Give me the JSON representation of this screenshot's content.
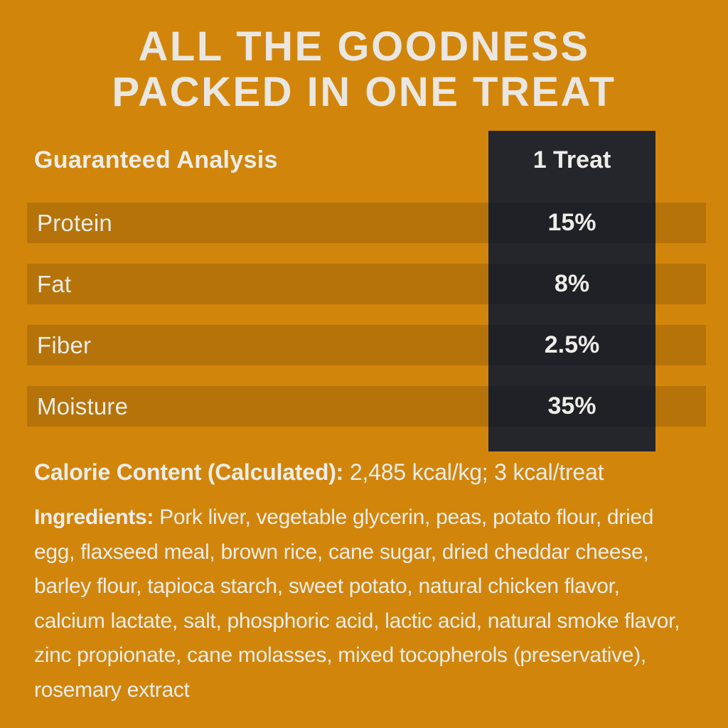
{
  "label_panel": {
    "title": {
      "line1": "ALL THE GOODNESS",
      "line2": "PACKED IN ONE TREAT"
    },
    "analysis_table": {
      "header": "Guaranteed Analysis",
      "column_header": "1 Treat",
      "rows": [
        {
          "label": "Protein",
          "value": "15%"
        },
        {
          "label": "Fat",
          "value": "8%"
        },
        {
          "label": "Fiber",
          "value": "2.5%"
        },
        {
          "label": "Moisture",
          "value": "35%"
        }
      ]
    },
    "calorie_content": {
      "label": "Calorie Content (Calculated):",
      "value": "2,485 kcal/kg; 3 kcal/treat"
    },
    "ingredients": {
      "label": "Ingredients:",
      "text": "Pork liver, vegetable glycerin, peas, potato flour, dried egg, flaxseed meal, brown rice, cane sugar, dried cheddar cheese, barley flour, tapioca starch, sweet potato, natural chicken flavor, calcium lactate, salt, phosphoric acid, lactic acid, natural smoke flavor, zinc propionate, cane molasses, mixed tocopherols (preservative), rosemary extract"
    },
    "colors": {
      "background": "#D2850B",
      "row_band_overlay": "rgba(0,0,0,0.13)",
      "dark_column": "#24262C",
      "text": "#EFEDE9",
      "title_text": "#EAE7E2"
    }
  }
}
